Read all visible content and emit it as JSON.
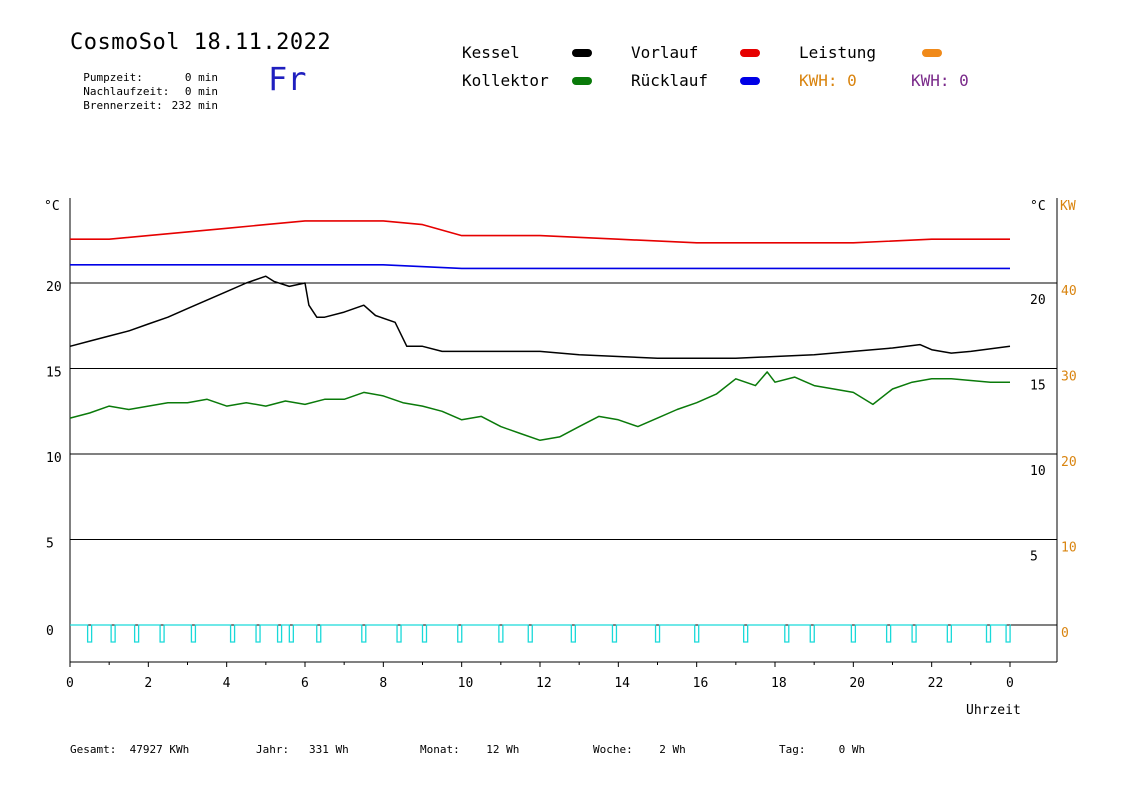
{
  "header": {
    "title": "CosmoSol 18.11.2022",
    "weekday": "Fr",
    "info": [
      {
        "label": "Pumpzeit:",
        "value": "0 min"
      },
      {
        "label": "Nachlaufzeit:",
        "value": "0 min"
      },
      {
        "label": "Brennerzeit:",
        "value": "232 min"
      }
    ]
  },
  "legend": {
    "items": [
      {
        "label": "Kessel",
        "color": "#000000"
      },
      {
        "label": "Vorlauf",
        "color": "#e60000"
      },
      {
        "label": "Leistung",
        "color": "#f08a1a"
      },
      {
        "label": "Kollektor",
        "color": "#0a7a0a"
      },
      {
        "label": "Rücklauf",
        "color": "#0000e6"
      }
    ],
    "kwh": [
      {
        "text": "KWH: 0",
        "color": "#d9840f"
      },
      {
        "text": "KWH: 0",
        "color": "#7a2a8a"
      }
    ]
  },
  "footer": [
    {
      "label": "Gesamt:",
      "value": "47927 KWh"
    },
    {
      "label": "Jahr:",
      "value": "331 Wh"
    },
    {
      "label": "Monat:",
      "value": "12 Wh"
    },
    {
      "label": "Woche:",
      "value": "2 Wh"
    },
    {
      "label": "Tag:",
      "value": "0 Wh"
    }
  ],
  "chart_data": {
    "type": "line",
    "xlabel": "Uhrzeit",
    "x_ticks": [
      "0",
      "2",
      "4",
      "6",
      "8",
      "10",
      "12",
      "14",
      "16",
      "18",
      "20",
      "22",
      "0"
    ],
    "y_unit_left": "°C",
    "y_unit_right": "°C",
    "y_unit_right_kw": "KW",
    "y_ticks_left": [
      "20",
      "15",
      "10",
      "5",
      "0"
    ],
    "y_ticks_right": [
      "20",
      "15",
      "10",
      "5"
    ],
    "y_ticks_right_kw": [
      "40",
      "30",
      "20",
      "10",
      "0"
    ],
    "ylim": [
      0,
      20
    ],
    "grid": true,
    "series": [
      {
        "name": "Vorlauf",
        "color": "#e60000",
        "panel": "top",
        "x": [
          0,
          1,
          2,
          3,
          4,
          5,
          6,
          7,
          8,
          9,
          10,
          12,
          14,
          16,
          18,
          20,
          22,
          24
        ],
        "values": [
          52,
          52,
          53,
          54,
          55,
          56,
          57,
          57,
          57,
          56,
          53,
          53,
          52,
          51,
          51,
          51,
          52,
          52
        ]
      },
      {
        "name": "Rücklauf",
        "color": "#0000e6",
        "panel": "top",
        "x": [
          0,
          2,
          4,
          6,
          8,
          10,
          12,
          14,
          16,
          18,
          20,
          22,
          24
        ],
        "values": [
          45,
          45,
          45,
          45,
          45,
          44,
          44,
          44,
          44,
          44,
          44,
          44,
          44
        ]
      },
      {
        "name": "Kessel",
        "color": "#000000",
        "x": [
          0,
          0.5,
          1,
          1.5,
          2,
          2.5,
          3,
          3.5,
          4,
          4.5,
          5,
          5.2,
          5.6,
          6,
          6.1,
          6.3,
          6.5,
          7,
          7.5,
          7.8,
          8.3,
          8.6,
          9,
          9.5,
          10,
          11,
          12,
          13,
          14,
          15,
          15.5,
          16,
          17,
          18,
          19,
          20,
          21,
          21.7,
          22,
          22.5,
          23,
          24
        ],
        "values": [
          16.3,
          16.6,
          16.9,
          17.2,
          17.6,
          18.0,
          18.5,
          19.0,
          19.5,
          20.0,
          20.4,
          20.1,
          19.8,
          20.0,
          18.7,
          18.0,
          18.0,
          18.3,
          18.7,
          18.1,
          17.7,
          16.3,
          16.3,
          16.0,
          16.0,
          16.0,
          16.0,
          15.8,
          15.7,
          15.6,
          15.6,
          15.6,
          15.6,
          15.7,
          15.8,
          16.0,
          16.2,
          16.4,
          16.1,
          15.9,
          16.0,
          16.3
        ]
      },
      {
        "name": "Kollektor",
        "color": "#0a7a0a",
        "x": [
          0,
          0.5,
          1,
          1.5,
          2,
          2.5,
          3,
          3.5,
          4,
          4.5,
          5,
          5.5,
          6,
          6.5,
          7,
          7.5,
          8,
          8.5,
          9,
          9.5,
          10,
          10.5,
          11,
          11.5,
          12,
          12.5,
          13,
          13.5,
          14,
          14.5,
          15,
          15.5,
          16,
          16.5,
          17,
          17.5,
          17.8,
          18,
          18.5,
          19,
          19.5,
          20,
          20.5,
          21,
          21.5,
          22,
          22.5,
          23,
          23.5,
          24
        ],
        "values": [
          12.1,
          12.4,
          12.8,
          12.6,
          12.8,
          13.0,
          13.0,
          13.2,
          12.8,
          13.0,
          12.8,
          13.1,
          12.9,
          13.2,
          13.2,
          13.6,
          13.4,
          13.0,
          12.8,
          12.5,
          12.0,
          12.2,
          11.6,
          11.2,
          10.8,
          11.0,
          11.6,
          12.2,
          12.0,
          11.6,
          12.1,
          12.6,
          13.0,
          13.5,
          14.4,
          14.0,
          14.8,
          14.2,
          14.5,
          14.0,
          13.8,
          13.6,
          12.9,
          13.8,
          14.2,
          14.4,
          14.4,
          14.3,
          14.2,
          14.2
        ]
      },
      {
        "name": "Pumpe",
        "color": "#19d9d9",
        "pulses_x": [
          0.45,
          1.05,
          1.65,
          2.3,
          3.1,
          4.1,
          4.75,
          5.3,
          5.6,
          6.3,
          7.45,
          8.35,
          9.0,
          9.9,
          10.95,
          11.7,
          12.8,
          13.85,
          14.95,
          15.95,
          17.2,
          18.25,
          18.9,
          19.95,
          20.85,
          21.5,
          22.4,
          23.4,
          23.9
        ]
      }
    ]
  }
}
